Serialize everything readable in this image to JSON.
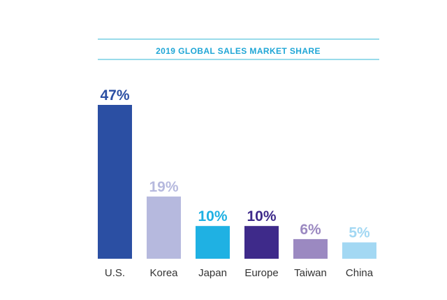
{
  "chart_data": {
    "type": "bar",
    "title": "2019 GLOBAL SALES MARKET SHARE",
    "categories": [
      "U.S.",
      "Korea",
      "Japan",
      "Europe",
      "Taiwan",
      "China"
    ],
    "values": [
      47,
      19,
      10,
      10,
      6,
      5
    ],
    "value_labels": [
      "47%",
      "19%",
      "10%",
      "10%",
      "6%",
      "5%"
    ],
    "unit": "%",
    "colors": [
      "#2b4fa3",
      "#b6b9de",
      "#1fb1e3",
      "#3e2a8a",
      "#9b89c1",
      "#a3d8f3"
    ],
    "title_color": "#1fa6d6",
    "rule_color": "#5cc5dd",
    "ylim": [
      0,
      47
    ],
    "grid": false,
    "legend": "none"
  }
}
